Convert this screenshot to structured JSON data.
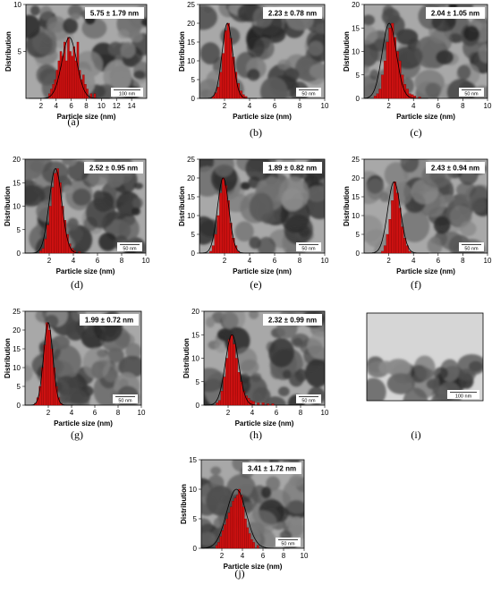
{
  "figure": {
    "panels": [
      {
        "letter": "(a)",
        "mean_label": "5.75 ± 1.79 nm",
        "scale_bar": "100 nm"
      },
      {
        "letter": "(b)",
        "mean_label": "2.23 ± 0.78 nm",
        "scale_bar": "50 nm"
      },
      {
        "letter": "(c)",
        "mean_label": "2.04 ± 1.05 nm",
        "scale_bar": "50 nm"
      },
      {
        "letter": "(d)",
        "mean_label": "2.52 ± 0.95 nm",
        "scale_bar": "50 nm"
      },
      {
        "letter": "(e)",
        "mean_label": "1.89 ± 0.82 nm",
        "scale_bar": "50 nm"
      },
      {
        "letter": "(f)",
        "mean_label": "2.43 ± 0.94 nm",
        "scale_bar": "50 nm"
      },
      {
        "letter": "(g)",
        "mean_label": "1.99 ± 0.72 nm",
        "scale_bar": "50 nm"
      },
      {
        "letter": "(h)",
        "mean_label": "2.32 ± 0.99 nm",
        "scale_bar": "50 nm"
      },
      {
        "letter": "(i)",
        "mean_label": "",
        "scale_bar": "100 nm"
      },
      {
        "letter": "(j)",
        "mean_label": "3.41 ± 1.72 nm",
        "scale_bar": "50 nm"
      }
    ]
  },
  "colors": {
    "bar_fill": "#cc1111",
    "bar_stroke": "#7a0000",
    "fit_line": "#000000",
    "tem_background": "#a8a8a8",
    "label_box": "#ffffff"
  },
  "chart_data": [
    {
      "type": "bar",
      "panel": "(a)",
      "xlabel": "Particle size (nm)",
      "ylabel": "Distribution",
      "xlim": [
        0,
        16
      ],
      "ylim": [
        0,
        10
      ],
      "xticks": [
        2,
        4,
        6,
        8,
        10,
        12,
        14
      ],
      "yticks": [
        5,
        10
      ],
      "bin_width": 0.25,
      "bin_starts": [
        3.0,
        3.25,
        3.5,
        3.75,
        4.0,
        4.25,
        4.5,
        4.75,
        5.0,
        5.25,
        5.5,
        5.75,
        6.0,
        6.25,
        6.5,
        6.75,
        7.0,
        7.25,
        7.5,
        7.75,
        8.0,
        8.5,
        9.0
      ],
      "values": [
        0.5,
        1,
        1.5,
        2,
        3,
        4,
        5,
        4.5,
        6,
        4,
        6.5,
        5,
        4.5,
        5.5,
        4,
        6,
        3,
        2,
        2.5,
        1.5,
        1,
        0.5,
        0.5
      ],
      "mean": 5.75,
      "sd": 1.79
    },
    {
      "type": "bar",
      "panel": "(b)",
      "xlabel": "Particle size (nm)",
      "ylabel": "Distribution",
      "xlim": [
        0,
        10
      ],
      "ylim": [
        0,
        25
      ],
      "xticks": [
        2,
        4,
        6,
        8,
        10
      ],
      "yticks": [
        0,
        5,
        10,
        15,
        20,
        25
      ],
      "bin_width": 0.2,
      "bin_starts": [
        1.0,
        1.2,
        1.4,
        1.6,
        1.8,
        2.0,
        2.2,
        2.4,
        2.6,
        2.8,
        3.0,
        3.2,
        3.4,
        3.6
      ],
      "values": [
        0.5,
        1.5,
        3,
        7,
        12,
        18,
        20,
        16,
        11,
        7,
        4,
        2,
        1,
        0.5
      ],
      "mean": 2.23,
      "sd": 0.78
    },
    {
      "type": "bar",
      "panel": "(c)",
      "xlabel": "Particle size (nm)",
      "ylabel": "Distribution",
      "xlim": [
        0,
        10
      ],
      "ylim": [
        0,
        20
      ],
      "xticks": [
        2,
        4,
        6,
        8,
        10
      ],
      "yticks": [
        0,
        5,
        10,
        15,
        20
      ],
      "bin_width": 0.2,
      "bin_starts": [
        0.8,
        1.0,
        1.2,
        1.4,
        1.6,
        1.8,
        2.0,
        2.2,
        2.4,
        2.6,
        2.8,
        3.0,
        3.2,
        3.4,
        3.6,
        3.8,
        4.0,
        4.4
      ],
      "values": [
        0.5,
        1,
        2,
        5,
        8,
        12,
        15,
        16,
        13,
        10,
        8,
        5,
        3,
        2,
        1,
        0.8,
        0.5,
        0.3
      ],
      "mean": 2.04,
      "sd": 1.05
    },
    {
      "type": "bar",
      "panel": "(d)",
      "xlabel": "Particle size (nm)",
      "ylabel": "Distribution",
      "xlim": [
        0,
        10
      ],
      "ylim": [
        0,
        20
      ],
      "xticks": [
        2,
        4,
        6,
        8,
        10
      ],
      "yticks": [
        0,
        5,
        10,
        15,
        20
      ],
      "bin_width": 0.2,
      "bin_starts": [
        1.2,
        1.4,
        1.6,
        1.8,
        2.0,
        2.2,
        2.4,
        2.6,
        2.8,
        3.0,
        3.2,
        3.4,
        3.6,
        3.8,
        4.0,
        4.4
      ],
      "values": [
        0.5,
        1,
        3,
        6,
        10,
        14,
        17,
        18,
        15,
        10,
        7,
        4,
        2,
        1,
        0.5,
        0.3
      ],
      "mean": 2.52,
      "sd": 0.95
    },
    {
      "type": "bar",
      "panel": "(e)",
      "xlabel": "Particle size (nm)",
      "ylabel": "Distribution",
      "xlim": [
        0,
        10
      ],
      "ylim": [
        0,
        25
      ],
      "xticks": [
        2,
        4,
        6,
        8,
        10
      ],
      "yticks": [
        0,
        5,
        10,
        15,
        20,
        25
      ],
      "bin_width": 0.2,
      "bin_starts": [
        0.8,
        1.0,
        1.2,
        1.4,
        1.6,
        1.8,
        2.0,
        2.2,
        2.4,
        2.6,
        2.8,
        3.0
      ],
      "values": [
        0.5,
        2,
        5,
        10,
        16,
        20,
        18,
        14,
        8,
        4,
        2,
        0.5
      ],
      "mean": 1.89,
      "sd": 0.82
    },
    {
      "type": "bar",
      "panel": "(f)",
      "xlabel": "Particle size (nm)",
      "ylabel": "Distribution",
      "xlim": [
        0,
        10
      ],
      "ylim": [
        0,
        25
      ],
      "xticks": [
        2,
        4,
        6,
        8,
        10
      ],
      "yticks": [
        0,
        5,
        10,
        15,
        20,
        25
      ],
      "bin_width": 0.2,
      "bin_starts": [
        1.4,
        1.6,
        1.8,
        2.0,
        2.2,
        2.4,
        2.6,
        2.8,
        3.0,
        3.2,
        3.4,
        3.6
      ],
      "values": [
        0.5,
        2,
        5,
        9,
        14,
        19,
        16,
        12,
        7,
        4,
        2,
        0.5
      ],
      "mean": 2.43,
      "sd": 0.94
    },
    {
      "type": "bar",
      "panel": "(g)",
      "xlabel": "Particle size (nm)",
      "ylabel": "Distribution",
      "xlim": [
        0,
        10
      ],
      "ylim": [
        0,
        25
      ],
      "xticks": [
        2,
        4,
        6,
        8,
        10
      ],
      "yticks": [
        0,
        5,
        10,
        15,
        20,
        25
      ],
      "bin_width": 0.2,
      "bin_starts": [
        0.8,
        1.0,
        1.2,
        1.4,
        1.6,
        1.8,
        2.0,
        2.2,
        2.4,
        2.6,
        2.8,
        3.0
      ],
      "values": [
        0.5,
        2,
        5,
        10,
        16,
        22,
        20,
        15,
        10,
        5,
        2,
        0.5
      ],
      "mean": 1.99,
      "sd": 0.72
    },
    {
      "type": "bar",
      "panel": "(h)",
      "xlabel": "Particle size (nm)",
      "ylabel": "Distribution",
      "xlim": [
        0,
        10
      ],
      "ylim": [
        0,
        20
      ],
      "xticks": [
        2,
        4,
        6,
        8,
        10
      ],
      "yticks": [
        0,
        5,
        10,
        15,
        20
      ],
      "bin_width": 0.2,
      "bin_starts": [
        1.0,
        1.2,
        1.4,
        1.6,
        1.8,
        2.0,
        2.2,
        2.4,
        2.6,
        2.8,
        3.0,
        3.2,
        3.4,
        3.6,
        3.8,
        4.0,
        4.4,
        4.8,
        5.2,
        5.6
      ],
      "values": [
        0.5,
        1,
        3,
        6,
        10,
        14,
        15,
        13,
        10,
        7,
        5,
        3,
        2,
        1.5,
        1,
        0.8,
        0.5,
        0.5,
        0.3,
        0.3
      ],
      "mean": 2.32,
      "sd": 0.99
    },
    {
      "type": "bar",
      "panel": "(j)",
      "xlabel": "Particle size (nm)",
      "ylabel": "Distribution",
      "xlim": [
        0,
        10
      ],
      "ylim": [
        0,
        15
      ],
      "xticks": [
        2,
        4,
        6,
        8,
        10
      ],
      "yticks": [
        0,
        5,
        10,
        15
      ],
      "bin_width": 0.2,
      "bin_starts": [
        1.4,
        1.6,
        1.8,
        2.0,
        2.2,
        2.4,
        2.6,
        2.8,
        3.0,
        3.2,
        3.4,
        3.6,
        3.8,
        4.0,
        4.2,
        4.4,
        4.6,
        4.8,
        5.0,
        5.4
      ],
      "values": [
        0.5,
        1,
        2,
        3,
        4,
        5,
        6,
        7,
        8,
        8.5,
        9,
        10,
        9,
        7,
        5,
        3.5,
        2.5,
        1.5,
        1,
        0.5
      ],
      "mean": 3.41,
      "sd": 1.72
    }
  ]
}
